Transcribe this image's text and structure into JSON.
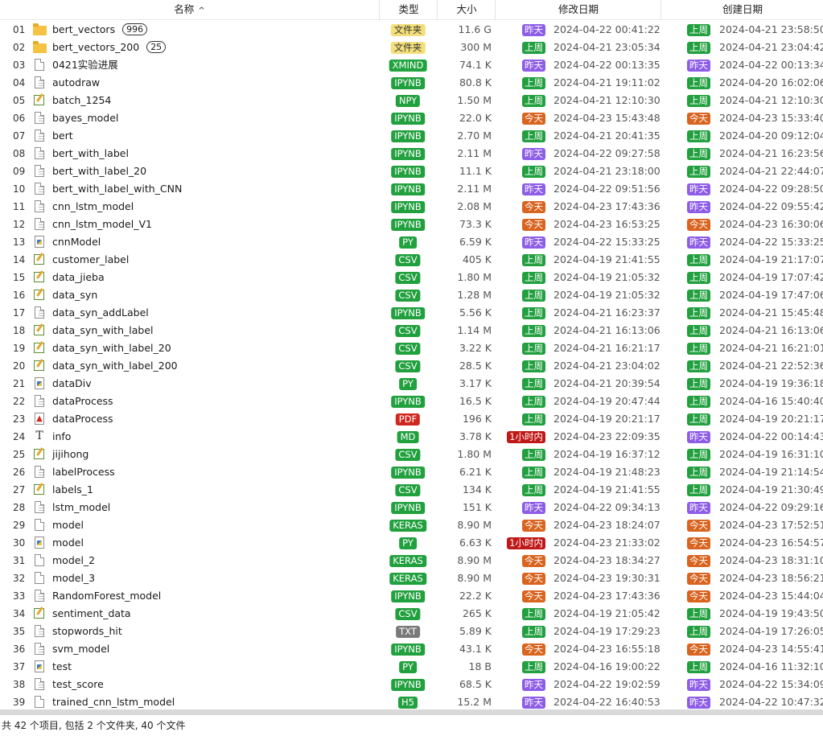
{
  "columns": {
    "name": "名称",
    "type": "类型",
    "size": "大小",
    "modified": "修改日期",
    "created": "创建日期",
    "sort_indicator": "^"
  },
  "colors": {
    "folder": "#f3e07a",
    "xmind": "#20a33e",
    "ipynb": "#21a03e",
    "npy": "#21a03e",
    "py": "#21a03e",
    "csv": "#21a03e",
    "pdf": "#d0281f",
    "md": "#21a03e",
    "keras": "#21a03e",
    "txt": "#7a7a7a",
    "h5": "#21a03e",
    "上周": "#22a03f",
    "昨天": "#8e5de8",
    "今天": "#d8641f",
    "1小时内": "#c01717"
  },
  "files": [
    {
      "num": "01",
      "icon": "folder",
      "name": "bert_vectors",
      "count": "996",
      "type": "文件夹",
      "type_key": "folder",
      "size": "11.6 G",
      "m_badge": "昨天",
      "m_date": "2024-04-22  00:41:22",
      "c_badge": "上周",
      "c_date": "2024-04-21  23:58:50"
    },
    {
      "num": "02",
      "icon": "folder",
      "name": "bert_vectors_200",
      "count": "25",
      "type": "文件夹",
      "type_key": "folder",
      "size": "300 M",
      "m_badge": "上周",
      "m_date": "2024-04-21  23:05:34",
      "c_badge": "上周",
      "c_date": "2024-04-21  23:04:42"
    },
    {
      "num": "03",
      "icon": "file",
      "name": "0421实验进展",
      "type": "XMIND",
      "type_key": "xmind",
      "size": "74.1 K",
      "m_badge": "昨天",
      "m_date": "2024-04-22  00:13:35",
      "c_badge": "昨天",
      "c_date": "2024-04-22  00:13:34"
    },
    {
      "num": "04",
      "icon": "doc",
      "name": "autodraw",
      "type": "IPYNB",
      "type_key": "ipynb",
      "size": "80.8 K",
      "m_badge": "上周",
      "m_date": "2024-04-21  19:11:02",
      "c_badge": "上周",
      "c_date": "2024-04-20  16:02:06"
    },
    {
      "num": "05",
      "icon": "note",
      "name": "batch_1254",
      "type": "NPY",
      "type_key": "npy",
      "size": "1.50 M",
      "m_badge": "上周",
      "m_date": "2024-04-21  12:10:30",
      "c_badge": "上周",
      "c_date": "2024-04-21  12:10:30"
    },
    {
      "num": "06",
      "icon": "doc",
      "name": "bayes_model",
      "type": "IPYNB",
      "type_key": "ipynb",
      "size": "22.0 K",
      "m_badge": "今天",
      "m_date": "2024-04-23  15:43:48",
      "c_badge": "今天",
      "c_date": "2024-04-23  15:33:40"
    },
    {
      "num": "07",
      "icon": "doc",
      "name": "bert",
      "type": "IPYNB",
      "type_key": "ipynb",
      "size": "2.70 M",
      "m_badge": "上周",
      "m_date": "2024-04-21  20:41:35",
      "c_badge": "上周",
      "c_date": "2024-04-20  09:12:04"
    },
    {
      "num": "08",
      "icon": "doc",
      "name": "bert_with_label",
      "type": "IPYNB",
      "type_key": "ipynb",
      "size": "2.11 M",
      "m_badge": "昨天",
      "m_date": "2024-04-22  09:27:58",
      "c_badge": "上周",
      "c_date": "2024-04-21  16:23:56"
    },
    {
      "num": "09",
      "icon": "doc",
      "name": "bert_with_label_20",
      "type": "IPYNB",
      "type_key": "ipynb",
      "size": "11.1 K",
      "m_badge": "上周",
      "m_date": "2024-04-21  23:18:00",
      "c_badge": "上周",
      "c_date": "2024-04-21  22:44:07"
    },
    {
      "num": "10",
      "icon": "doc",
      "name": "bert_with_label_with_CNN",
      "type": "IPYNB",
      "type_key": "ipynb",
      "size": "2.11 M",
      "m_badge": "昨天",
      "m_date": "2024-04-22  09:51:56",
      "c_badge": "昨天",
      "c_date": "2024-04-22  09:28:50"
    },
    {
      "num": "11",
      "icon": "doc",
      "name": "cnn_lstm_model",
      "type": "IPYNB",
      "type_key": "ipynb",
      "size": "2.08 M",
      "m_badge": "今天",
      "m_date": "2024-04-23  17:43:36",
      "c_badge": "昨天",
      "c_date": "2024-04-22  09:55:42"
    },
    {
      "num": "12",
      "icon": "doc",
      "name": "cnn_lstm_model_V1",
      "type": "IPYNB",
      "type_key": "ipynb",
      "size": "73.3 K",
      "m_badge": "今天",
      "m_date": "2024-04-23  16:53:25",
      "c_badge": "今天",
      "c_date": "2024-04-23  16:30:06"
    },
    {
      "num": "13",
      "icon": "py",
      "name": "cnnModel",
      "type": "PY",
      "type_key": "py",
      "size": "6.59 K",
      "m_badge": "昨天",
      "m_date": "2024-04-22  15:33:25",
      "c_badge": "昨天",
      "c_date": "2024-04-22  15:33:25"
    },
    {
      "num": "14",
      "icon": "note",
      "name": "customer_label",
      "type": "CSV",
      "type_key": "csv",
      "size": "405 K",
      "m_badge": "上周",
      "m_date": "2024-04-19  21:41:55",
      "c_badge": "上周",
      "c_date": "2024-04-19  21:17:07"
    },
    {
      "num": "15",
      "icon": "note",
      "name": "data_jieba",
      "type": "CSV",
      "type_key": "csv",
      "size": "1.80 M",
      "m_badge": "上周",
      "m_date": "2024-04-19  21:05:32",
      "c_badge": "上周",
      "c_date": "2024-04-19  17:07:42"
    },
    {
      "num": "16",
      "icon": "note",
      "name": "data_syn",
      "type": "CSV",
      "type_key": "csv",
      "size": "1.28 M",
      "m_badge": "上周",
      "m_date": "2024-04-19  21:05:32",
      "c_badge": "上周",
      "c_date": "2024-04-19  17:47:06"
    },
    {
      "num": "17",
      "icon": "doc",
      "name": "data_syn_addLabel",
      "type": "IPYNB",
      "type_key": "ipynb",
      "size": "5.56 K",
      "m_badge": "上周",
      "m_date": "2024-04-21  16:23:37",
      "c_badge": "上周",
      "c_date": "2024-04-21  15:45:48"
    },
    {
      "num": "18",
      "icon": "note",
      "name": "data_syn_with_label",
      "type": "CSV",
      "type_key": "csv",
      "size": "1.14 M",
      "m_badge": "上周",
      "m_date": "2024-04-21  16:13:06",
      "c_badge": "上周",
      "c_date": "2024-04-21  16:13:06"
    },
    {
      "num": "19",
      "icon": "note",
      "name": "data_syn_with_label_20",
      "type": "CSV",
      "type_key": "csv",
      "size": "3.22 K",
      "m_badge": "上周",
      "m_date": "2024-04-21  16:21:17",
      "c_badge": "上周",
      "c_date": "2024-04-21  16:21:01"
    },
    {
      "num": "20",
      "icon": "note",
      "name": "data_syn_with_label_200",
      "type": "CSV",
      "type_key": "csv",
      "size": "28.5 K",
      "m_badge": "上周",
      "m_date": "2024-04-21  23:04:02",
      "c_badge": "上周",
      "c_date": "2024-04-21  22:52:36"
    },
    {
      "num": "21",
      "icon": "py",
      "name": "dataDiv",
      "type": "PY",
      "type_key": "py",
      "size": "3.17 K",
      "m_badge": "上周",
      "m_date": "2024-04-21  20:39:54",
      "c_badge": "上周",
      "c_date": "2024-04-19  19:36:18"
    },
    {
      "num": "22",
      "icon": "doc",
      "name": "dataProcess",
      "type": "IPYNB",
      "type_key": "ipynb",
      "size": "16.5 K",
      "m_badge": "上周",
      "m_date": "2024-04-19  20:47:44",
      "c_badge": "上周",
      "c_date": "2024-04-16  15:40:40"
    },
    {
      "num": "23",
      "icon": "pdf",
      "name": "dataProcess",
      "type": "PDF",
      "type_key": "pdf",
      "size": "196 K",
      "m_badge": "上周",
      "m_date": "2024-04-19  20:21:17",
      "c_badge": "上周",
      "c_date": "2024-04-19  20:21:17"
    },
    {
      "num": "24",
      "icon": "txt",
      "name": "info",
      "type": "MD",
      "type_key": "md",
      "size": "3.78 K",
      "m_badge": "1小时内",
      "m_date": "2024-04-23  22:09:35",
      "c_badge": "昨天",
      "c_date": "2024-04-22  00:14:43"
    },
    {
      "num": "25",
      "icon": "note",
      "name": "jijihong",
      "type": "CSV",
      "type_key": "csv",
      "size": "1.80 M",
      "m_badge": "上周",
      "m_date": "2024-04-19  16:37:12",
      "c_badge": "上周",
      "c_date": "2024-04-19  16:31:10"
    },
    {
      "num": "26",
      "icon": "doc",
      "name": "labelProcess",
      "type": "IPYNB",
      "type_key": "ipynb",
      "size": "6.21 K",
      "m_badge": "上周",
      "m_date": "2024-04-19  21:48:23",
      "c_badge": "上周",
      "c_date": "2024-04-19  21:14:54"
    },
    {
      "num": "27",
      "icon": "note",
      "name": "labels_1",
      "type": "CSV",
      "type_key": "csv",
      "size": "134 K",
      "m_badge": "上周",
      "m_date": "2024-04-19  21:41:55",
      "c_badge": "上周",
      "c_date": "2024-04-19  21:30:49"
    },
    {
      "num": "28",
      "icon": "doc",
      "name": "lstm_model",
      "type": "IPYNB",
      "type_key": "ipynb",
      "size": "151 K",
      "m_badge": "昨天",
      "m_date": "2024-04-22  09:34:13",
      "c_badge": "昨天",
      "c_date": "2024-04-22  09:29:16"
    },
    {
      "num": "29",
      "icon": "file",
      "name": "model",
      "type": "KERAS",
      "type_key": "keras",
      "size": "8.90 M",
      "m_badge": "今天",
      "m_date": "2024-04-23  18:24:07",
      "c_badge": "今天",
      "c_date": "2024-04-23  17:52:51"
    },
    {
      "num": "30",
      "icon": "py",
      "name": "model",
      "type": "PY",
      "type_key": "py",
      "size": "6.63 K",
      "m_badge": "1小时内",
      "m_date": "2024-04-23  21:33:02",
      "c_badge": "今天",
      "c_date": "2024-04-23  16:54:57"
    },
    {
      "num": "31",
      "icon": "file",
      "name": "model_2",
      "type": "KERAS",
      "type_key": "keras",
      "size": "8.90 M",
      "m_badge": "今天",
      "m_date": "2024-04-23  18:34:27",
      "c_badge": "今天",
      "c_date": "2024-04-23  18:31:10"
    },
    {
      "num": "32",
      "icon": "file",
      "name": "model_3",
      "type": "KERAS",
      "type_key": "keras",
      "size": "8.90 M",
      "m_badge": "今天",
      "m_date": "2024-04-23  19:30:31",
      "c_badge": "今天",
      "c_date": "2024-04-23  18:56:21"
    },
    {
      "num": "33",
      "icon": "doc",
      "name": "RandomForest_model",
      "type": "IPYNB",
      "type_key": "ipynb",
      "size": "22.2 K",
      "m_badge": "今天",
      "m_date": "2024-04-23  17:43:36",
      "c_badge": "今天",
      "c_date": "2024-04-23  15:44:04"
    },
    {
      "num": "34",
      "icon": "note",
      "name": "sentiment_data",
      "type": "CSV",
      "type_key": "csv",
      "size": "265 K",
      "m_badge": "上周",
      "m_date": "2024-04-19  21:05:42",
      "c_badge": "上周",
      "c_date": "2024-04-19  19:43:50"
    },
    {
      "num": "35",
      "icon": "doc",
      "name": "stopwords_hit",
      "type": "TXT",
      "type_key": "txt",
      "size": "5.89 K",
      "m_badge": "上周",
      "m_date": "2024-04-19  17:29:23",
      "c_badge": "上周",
      "c_date": "2024-04-19  17:26:05"
    },
    {
      "num": "36",
      "icon": "doc",
      "name": "svm_model",
      "type": "IPYNB",
      "type_key": "ipynb",
      "size": "43.1 K",
      "m_badge": "今天",
      "m_date": "2024-04-23  16:55:18",
      "c_badge": "今天",
      "c_date": "2024-04-23  14:55:41"
    },
    {
      "num": "37",
      "icon": "py",
      "name": "test",
      "type": "PY",
      "type_key": "py",
      "size": "18 B",
      "m_badge": "上周",
      "m_date": "2024-04-16  19:00:22",
      "c_badge": "上周",
      "c_date": "2024-04-16  11:32:10"
    },
    {
      "num": "38",
      "icon": "doc",
      "name": "test_score",
      "type": "IPYNB",
      "type_key": "ipynb",
      "size": "68.5 K",
      "m_badge": "昨天",
      "m_date": "2024-04-22  19:02:59",
      "c_badge": "昨天",
      "c_date": "2024-04-22  15:34:09"
    },
    {
      "num": "39",
      "icon": "file",
      "name": "trained_cnn_lstm_model",
      "type": "H5",
      "type_key": "h5",
      "size": "15.2 M",
      "m_badge": "昨天",
      "m_date": "2024-04-22  16:40:53",
      "c_badge": "昨天",
      "c_date": "2024-04-22  10:47:32"
    }
  ],
  "status_text": "共 42 个项目, 包括 2 个文件夹, 40 个文件"
}
